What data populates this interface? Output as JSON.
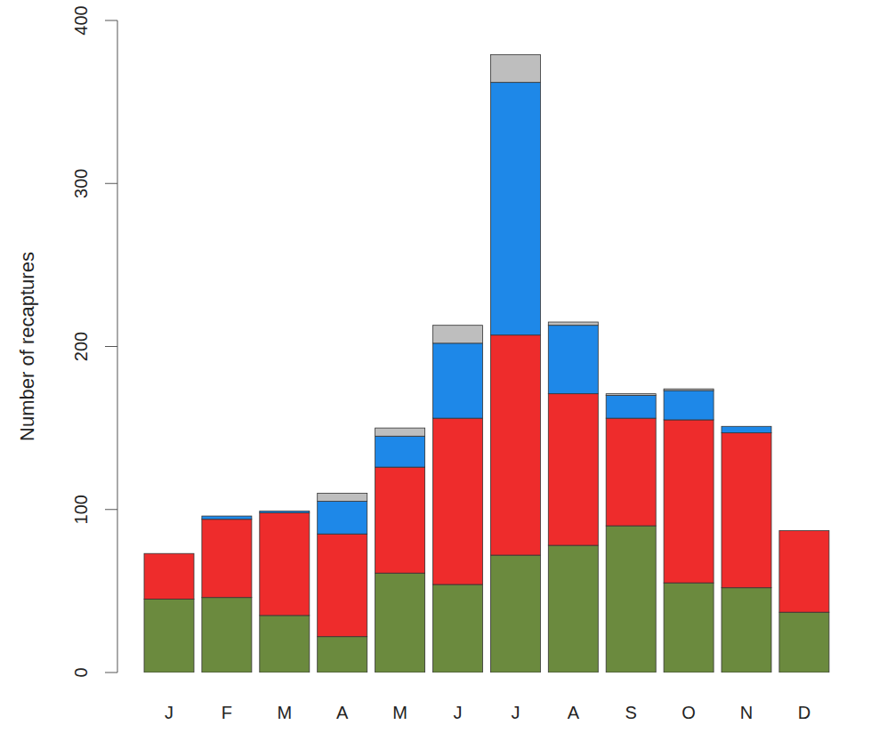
{
  "chart_data": {
    "type": "bar",
    "stacked": true,
    "y_label": "Number of recaptures",
    "categories": [
      "J",
      "F",
      "M",
      "A",
      "M",
      "J",
      "J",
      "A",
      "S",
      "O",
      "N",
      "D"
    ],
    "series": [
      {
        "color": "#6b8a3e",
        "values": [
          45,
          46,
          35,
          22,
          61,
          54,
          72,
          78,
          90,
          55,
          52,
          37
        ]
      },
      {
        "color": "#ee2c2c",
        "values": [
          28,
          48,
          63,
          63,
          65,
          102,
          135,
          93,
          66,
          100,
          95,
          50
        ]
      },
      {
        "color": "#1e88e8",
        "values": [
          0,
          2,
          1,
          20,
          19,
          46,
          155,
          42,
          14,
          18,
          4,
          0
        ]
      },
      {
        "color": "#bebebe",
        "values": [
          0,
          0,
          0,
          5,
          5,
          11,
          17,
          2,
          1,
          1,
          0,
          0
        ]
      }
    ],
    "ylim": [
      0,
      400
    ],
    "yticks": [
      0,
      100,
      200,
      300,
      400
    ]
  }
}
